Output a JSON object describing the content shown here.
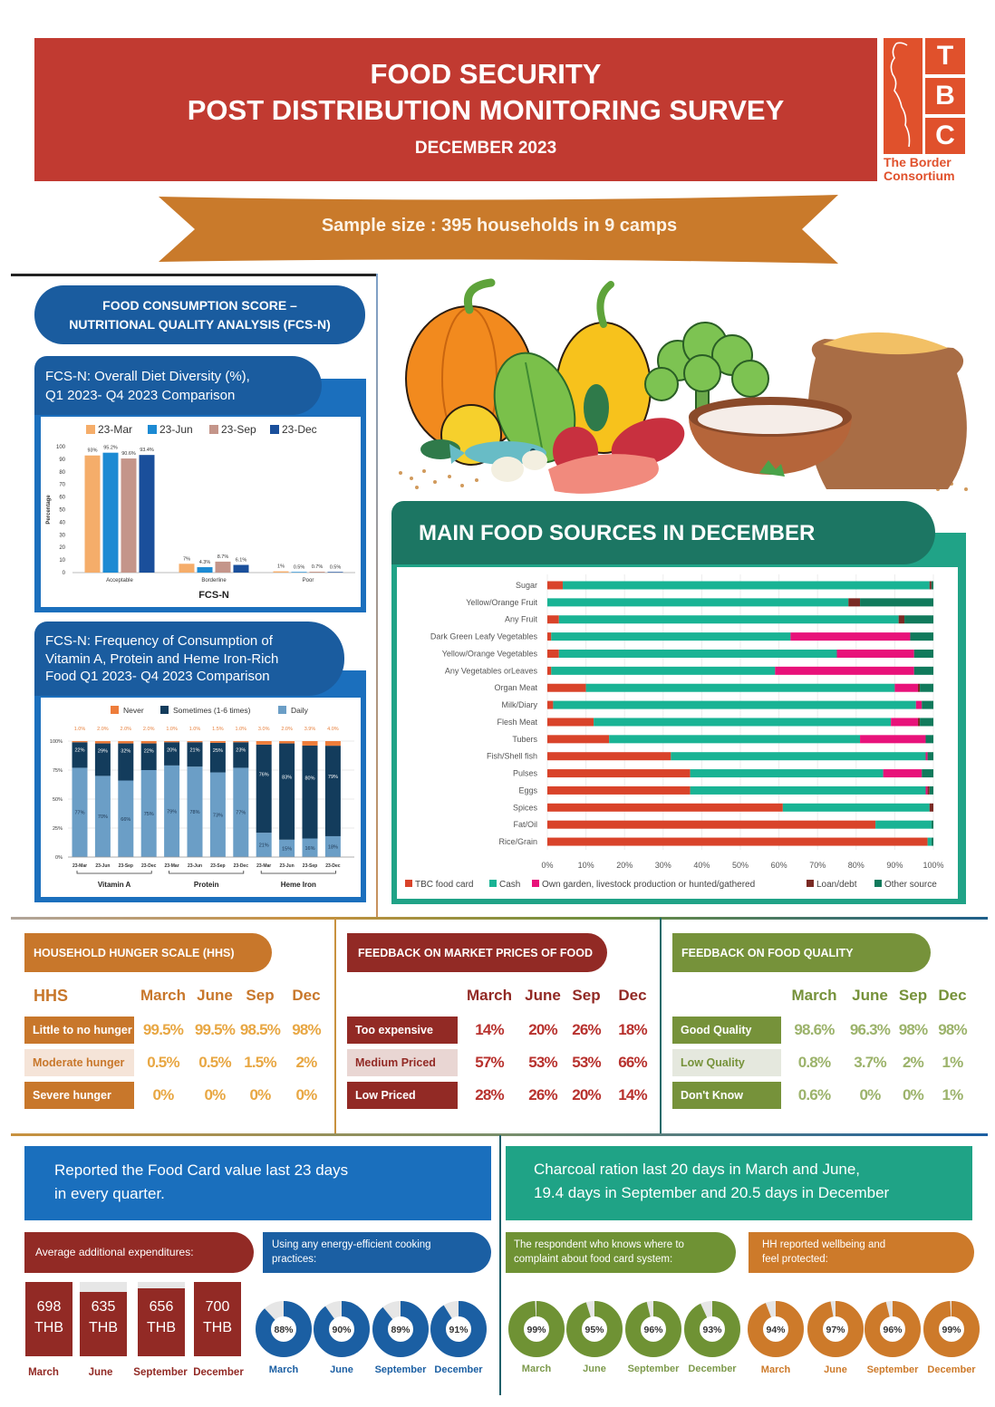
{
  "header": {
    "title_line1": "FOOD SECURITY",
    "title_line2": "POST DISTRIBUTION MONITORING SURVEY",
    "date": "DECEMBER 2023"
  },
  "logo": {
    "letters": [
      "T",
      "B",
      "C"
    ],
    "name_line1": "The Border",
    "name_line2": "Consortium"
  },
  "ribbon": {
    "text": "Sample size : 395 households in 9 camps"
  },
  "fcsn": {
    "title_line1": "FOOD CONSUMPTION SCORE –",
    "title_line2": "NUTRITIONAL QUALITY ANALYSIS (FCS-N)"
  },
  "hhs": {
    "title": "HOUSEHOLD HUNGER SCALE (HHS)",
    "row_header": "HHS",
    "columns": [
      "March",
      "June",
      "Sep",
      "Dec"
    ],
    "rows": [
      {
        "label": "Little to no hunger",
        "values": [
          "99.5%",
          "99.5%",
          "98.5%",
          "98%"
        ]
      },
      {
        "label": "Moderate hunger",
        "values": [
          "0.5%",
          "0.5%",
          "1.5%",
          "2%"
        ]
      },
      {
        "label": "Severe hunger",
        "values": [
          "0%",
          "0%",
          "0%",
          "0%"
        ]
      }
    ]
  },
  "market": {
    "title": "FEEDBACK ON MARKET PRICES OF FOOD",
    "columns": [
      "March",
      "June",
      "Sep",
      "Dec"
    ],
    "rows": [
      {
        "label": "Too expensive",
        "values": [
          "14%",
          "20%",
          "26%",
          "18%"
        ]
      },
      {
        "label": "Medium Priced",
        "values": [
          "57%",
          "53%",
          "53%",
          "66%"
        ]
      },
      {
        "label": "Low Priced",
        "values": [
          "28%",
          "26%",
          "20%",
          "14%"
        ]
      }
    ]
  },
  "quality": {
    "title": "FEEDBACK ON FOOD QUALITY",
    "columns": [
      "March",
      "June",
      "Sep",
      "Dec"
    ],
    "rows": [
      {
        "label": "Good Quality",
        "values": [
          "98.6%",
          "96.3%",
          "98%",
          "98%"
        ]
      },
      {
        "label": "Low Quality",
        "values": [
          "0.8%",
          "3.7%",
          "2%",
          "1%"
        ]
      },
      {
        "label": "Don't Know",
        "values": [
          "0.6%",
          "0%",
          "0%",
          "1%"
        ]
      }
    ]
  },
  "notes": {
    "food_card_line1": "Reported the Food Card value last 23 days",
    "food_card_line2": "in every quarter.",
    "charcoal_line1": "Charcoal ration last 20 days in March and June,",
    "charcoal_line2": "19.4 days in September and 20.5 days in December"
  },
  "expenditures": {
    "title": "Average additional expenditures:",
    "items": [
      {
        "month": "March",
        "amount": "698",
        "unit": "THB",
        "value": 698
      },
      {
        "month": "June",
        "amount": "635",
        "unit": "THB",
        "value": 635
      },
      {
        "month": "September",
        "amount": "656",
        "unit": "THB",
        "value": 656
      },
      {
        "month": "December",
        "amount": "700",
        "unit": "THB",
        "value": 700
      }
    ]
  },
  "energy": {
    "title_line1": "Using any energy-efficient cooking",
    "title_line2": "practices:",
    "items": [
      {
        "month": "March",
        "label": "88%",
        "value": 88
      },
      {
        "month": "June",
        "label": "90%",
        "value": 90
      },
      {
        "month": "September",
        "label": "89%",
        "value": 89
      },
      {
        "month": "December",
        "label": "91%",
        "value": 91
      }
    ]
  },
  "complaint": {
    "title_line1": "The respondent who knows where to",
    "title_line2": "complaint about food card system:",
    "items": [
      {
        "month": "March",
        "label": "99%",
        "value": 99
      },
      {
        "month": "June",
        "label": "95%",
        "value": 95
      },
      {
        "month": "September",
        "label": "96%",
        "value": 96
      },
      {
        "month": "December",
        "label": "93%",
        "value": 93
      }
    ]
  },
  "wellbeing": {
    "title_line1": "HH reported wellbeing and",
    "title_line2": "feel protected:",
    "items": [
      {
        "month": "March",
        "label": "94%",
        "value": 94
      },
      {
        "month": "June",
        "label": "97%",
        "value": 97
      },
      {
        "month": "September",
        "label": "96%",
        "value": 96
      },
      {
        "month": "December",
        "label": "99%",
        "value": 99
      }
    ]
  },
  "colors": {
    "header_red": "#c13a31",
    "ribbon_orange": "#c97a2b",
    "fcs_blue": "#1a5c9f",
    "frame_blue": "#1b6fbd",
    "sources_teal_dark": "#1c7663",
    "sources_teal": "#20a387",
    "hhs_orange": "#c8772b",
    "market_red": "#922a25",
    "quality_green": "#76923a",
    "complaint_green": "#6f9234",
    "wellbeing_orange": "#cd7a2a",
    "energy_blue": "#1b5fa3",
    "logo_orange": "#e0512c"
  },
  "chart_data": [
    {
      "type": "bar",
      "title_lines": [
        "FCS-N: Overall Diet Diversity (%),",
        "Q1 2023- Q4 2023 Comparison"
      ],
      "xlabel": "FCS-N",
      "ylabel": "Percentage",
      "ylim": [
        0,
        100
      ],
      "yticks": [
        "0",
        "10",
        "20",
        "30",
        "40",
        "50",
        "60",
        "70",
        "80",
        "90",
        "100"
      ],
      "ytick_values": [
        0,
        10,
        20,
        30,
        40,
        50,
        60,
        70,
        80,
        90,
        100
      ],
      "grid": false,
      "legend": "top",
      "categories": [
        "Acceptable",
        "Borderline",
        "Poor"
      ],
      "series": [
        {
          "name": "23-Mar",
          "color": "#f5ad6a",
          "values": [
            93,
            7,
            1
          ],
          "labels": [
            "93%",
            "7%",
            "1%"
          ]
        },
        {
          "name": "23-Jun",
          "color": "#1c8ad3",
          "values": [
            95.2,
            4.3,
            0.5
          ],
          "labels": [
            "95.2%",
            "4.3%",
            "0.5%"
          ]
        },
        {
          "name": "23-Sep",
          "color": "#c4958a",
          "values": [
            90.6,
            8.7,
            0.7
          ],
          "labels": [
            "90.6%",
            "8.7%",
            "0.7%"
          ]
        },
        {
          "name": "23-Dec",
          "color": "#1a4f9b",
          "values": [
            93.4,
            6.1,
            0.5
          ],
          "labels": [
            "93.4%",
            "6.1%",
            "0.5%"
          ]
        }
      ]
    },
    {
      "type": "bar",
      "stacked": true,
      "title_lines": [
        "FCS-N: Frequency of Consumption of",
        "Vitamin A, Protein and Heme Iron-Rich",
        "Food Q1 2023- Q4 2023 Comparison"
      ],
      "ylim": [
        0,
        100
      ],
      "yticks": [
        "0%",
        "25%",
        "50%",
        "75%",
        "100%"
      ],
      "ytick_values": [
        0,
        25,
        50,
        75,
        100
      ],
      "grid": true,
      "legend": "top",
      "x": [
        "23-Mar",
        "23-Jun",
        "23-Sep",
        "23-Dec",
        "23-Mar",
        "23-Jun",
        "23-Sep",
        "23-Dec",
        "23-Mar",
        "23-Jun",
        "23-Sep",
        "23-Dec"
      ],
      "groups": [
        {
          "name": "Vitamin A",
          "first": 0,
          "last": 3
        },
        {
          "name": "Protein",
          "first": 4,
          "last": 7
        },
        {
          "name": "Heme Iron",
          "first": 8,
          "last": 11
        }
      ],
      "series": [
        {
          "name": "Never",
          "color": "#ee7d3b",
          "values": [
            1.0,
            2.0,
            2.0,
            2.0,
            1.0,
            1.0,
            1.5,
            1.0,
            3.0,
            2.0,
            3.9,
            4.0
          ],
          "labels": [
            "1.0%",
            "2.0%",
            "2.0%",
            "2.0%",
            "1.0%",
            "1.0%",
            "1.5%",
            "1.0%",
            "3.0%",
            "2.0%",
            "3.9%",
            "4.0%"
          ]
        },
        {
          "name": "Sometimes (1-6 times)",
          "color": "#133c5c",
          "values": [
            22,
            29,
            32,
            22,
            20,
            21,
            25,
            23,
            76,
            83,
            80,
            79
          ],
          "labels": [
            "22%",
            "29%",
            "32%",
            "22%",
            "20%",
            "21%",
            "25%",
            "23%",
            "76%",
            "83%",
            "80%",
            "79%"
          ]
        },
        {
          "name": "Daily",
          "color": "#6b9ec6",
          "values": [
            77,
            70,
            66,
            75,
            79,
            78,
            73,
            77,
            21,
            15,
            16,
            18
          ],
          "labels": [
            "77%",
            "70%",
            "66%",
            "75%",
            "79%",
            "78%",
            "73%",
            "77%",
            "21%",
            "15%",
            "16%",
            "18%"
          ]
        }
      ]
    },
    {
      "type": "bar",
      "orientation": "horizontal",
      "stacked": true,
      "title": "MAIN FOOD SOURCES IN DECEMBER",
      "xlim": [
        0,
        100
      ],
      "xticks": [
        "0%",
        "10%",
        "20%",
        "30%",
        "40%",
        "50%",
        "60%",
        "70%",
        "80%",
        "90%",
        "100%"
      ],
      "xtick_values": [
        0,
        10,
        20,
        30,
        40,
        50,
        60,
        70,
        80,
        90,
        100
      ],
      "grid": true,
      "legend": "bottom",
      "categories": [
        "Sugar",
        "Yellow/Orange Fruit",
        "Any Fruit",
        "Dark Green Leafy Vegetables",
        "Yellow/Orange Vegetables",
        "Any Vegetables orLeaves",
        "Organ Meat",
        "Milk/Diary",
        "Flesh Meat",
        "Tubers",
        "Fish/Shell fish",
        "Pulses",
        "Eggs",
        "Spices",
        "Fat/Oil",
        "Rice/Grain"
      ],
      "series": [
        {
          "name": "TBC food card",
          "color": "#d9432a",
          "values": [
            4,
            0,
            3,
            1,
            3,
            1,
            10,
            1.5,
            12,
            16,
            32,
            37,
            37,
            61,
            85,
            98.5
          ]
        },
        {
          "name": "Cash",
          "color": "#19b394",
          "values": [
            95,
            78,
            88,
            62,
            72,
            58,
            80,
            94,
            77,
            65,
            66,
            50,
            61,
            38,
            14.5,
            1
          ]
        },
        {
          "name": "Own garden, livestock production or hunted/gathered",
          "color": "#e8127a",
          "values": [
            0,
            0,
            0,
            31,
            20,
            36,
            6,
            1.5,
            7,
            17,
            0.5,
            10,
            0.5,
            0,
            0,
            0
          ]
        },
        {
          "name": "Loan/debt",
          "color": "#7a2a24",
          "values": [
            0.5,
            3,
            1.5,
            0,
            0,
            0,
            0.5,
            0,
            0.5,
            0,
            0,
            0,
            0.5,
            1,
            0,
            0
          ]
        },
        {
          "name": "Other source",
          "color": "#117a5c",
          "values": [
            0.5,
            19,
            7.5,
            6,
            5,
            5,
            3.5,
            3,
            3.5,
            2,
            1.5,
            3,
            1,
            0,
            0.5,
            0.5
          ]
        }
      ]
    }
  ]
}
